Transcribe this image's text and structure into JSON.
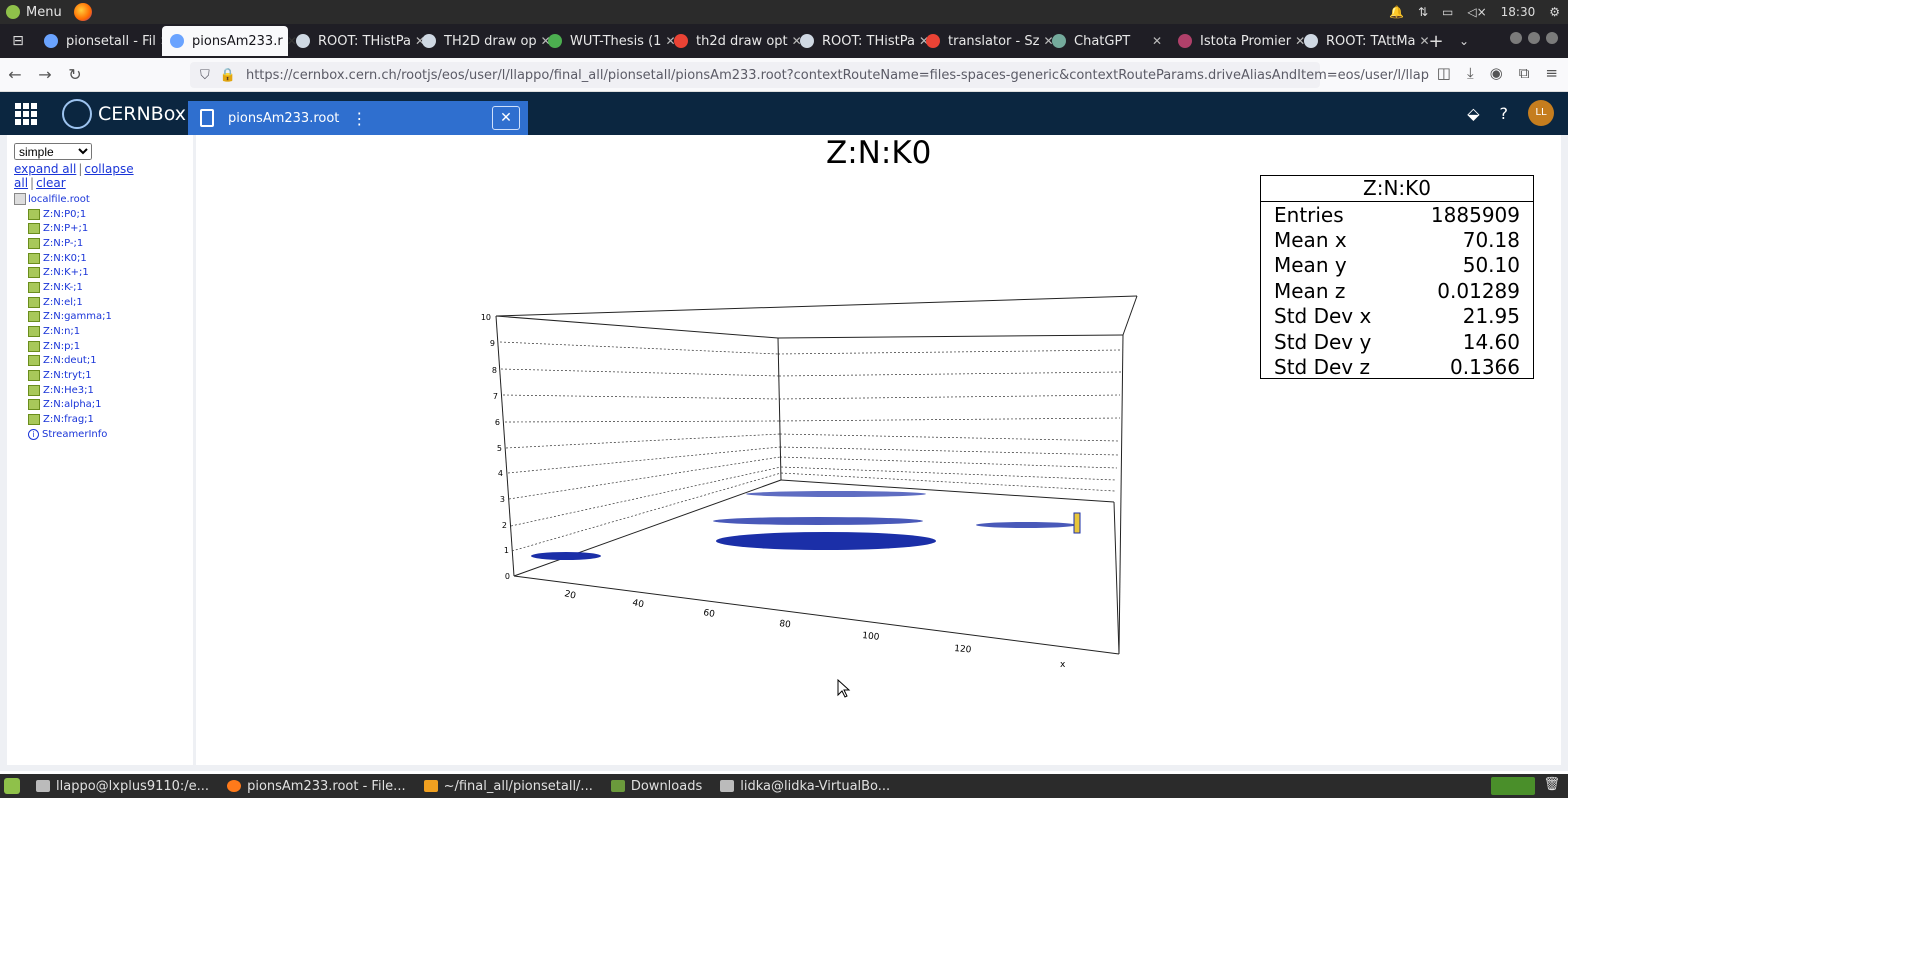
{
  "os_panel": {
    "menu_label": "Menu",
    "clock": "18:30"
  },
  "browser": {
    "tabs": [
      {
        "label": "pionsetall - Fil",
        "active": false
      },
      {
        "label": "pionsAm233.r",
        "active": true
      },
      {
        "label": "ROOT: THistPa",
        "active": false
      },
      {
        "label": "TH2D draw op",
        "active": false
      },
      {
        "label": "WUT-Thesis (1",
        "active": false
      },
      {
        "label": "th2d draw opt",
        "active": false
      },
      {
        "label": "ROOT: THistPa",
        "active": false
      },
      {
        "label": "translator - Sz",
        "active": false
      },
      {
        "label": "ChatGPT",
        "active": false
      },
      {
        "label": "Istota Promier",
        "active": false
      },
      {
        "label": "ROOT: TAttMa",
        "active": false
      }
    ],
    "url": "https://cernbox.cern.ch/rootjs/eos/user/l/llappo/final_all/pionsetall/pionsAm233.root?contextRouteName=files-spaces-generic&contextRouteParams.driveAliasAndItem=eos/user/l/llap"
  },
  "cernbox": {
    "brand": "CERNBox",
    "file_tab": "pionsAm233.root",
    "avatar": "LL"
  },
  "tree_panel": {
    "mode_select": "simple",
    "expand_all": "expand all",
    "collapse_all": "collapse all",
    "clear": "clear",
    "root_file": "localfile.root",
    "items": [
      "Z:N:P0;1",
      "Z:N:P+;1",
      "Z:N:P-;1",
      "Z:N:K0;1",
      "Z:N:K+;1",
      "Z:N:K-;1",
      "Z:N:el;1",
      "Z:N:gamma;1",
      "Z:N:n;1",
      "Z:N:p;1",
      "Z:N:deut;1",
      "Z:N:tryt;1",
      "Z:N:He3;1",
      "Z:N:alpha;1",
      "Z:N:frag;1"
    ],
    "streamer": "StreamerInfo"
  },
  "plot": {
    "title": "Z:N:K0",
    "stats": {
      "title": "Z:N:K0",
      "rows": [
        {
          "label": "Entries",
          "value": "1885909"
        },
        {
          "label": "Mean x",
          "value": "70.18"
        },
        {
          "label": "Mean y",
          "value": "50.10"
        },
        {
          "label": "Mean z",
          "value": "0.01289"
        },
        {
          "label": "Std Dev x",
          "value": "21.95"
        },
        {
          "label": "Std Dev y",
          "value": "14.60"
        },
        {
          "label": "Std Dev z",
          "value": "0.1366"
        }
      ]
    },
    "z_ticks": [
      "0",
      "1",
      "2",
      "3",
      "4",
      "5",
      "6",
      "7",
      "8",
      "9",
      "10"
    ],
    "x_ticks": [
      "20",
      "40",
      "60",
      "80",
      "100",
      "120"
    ],
    "x_axis_label": "x"
  },
  "taskbar": {
    "items": [
      "llappo@lxplus9110:/e...",
      "pionsAm233.root - File...",
      "~/final_all/pionsetall/...",
      "Downloads",
      "lidka@lidka-VirtualBo..."
    ]
  }
}
